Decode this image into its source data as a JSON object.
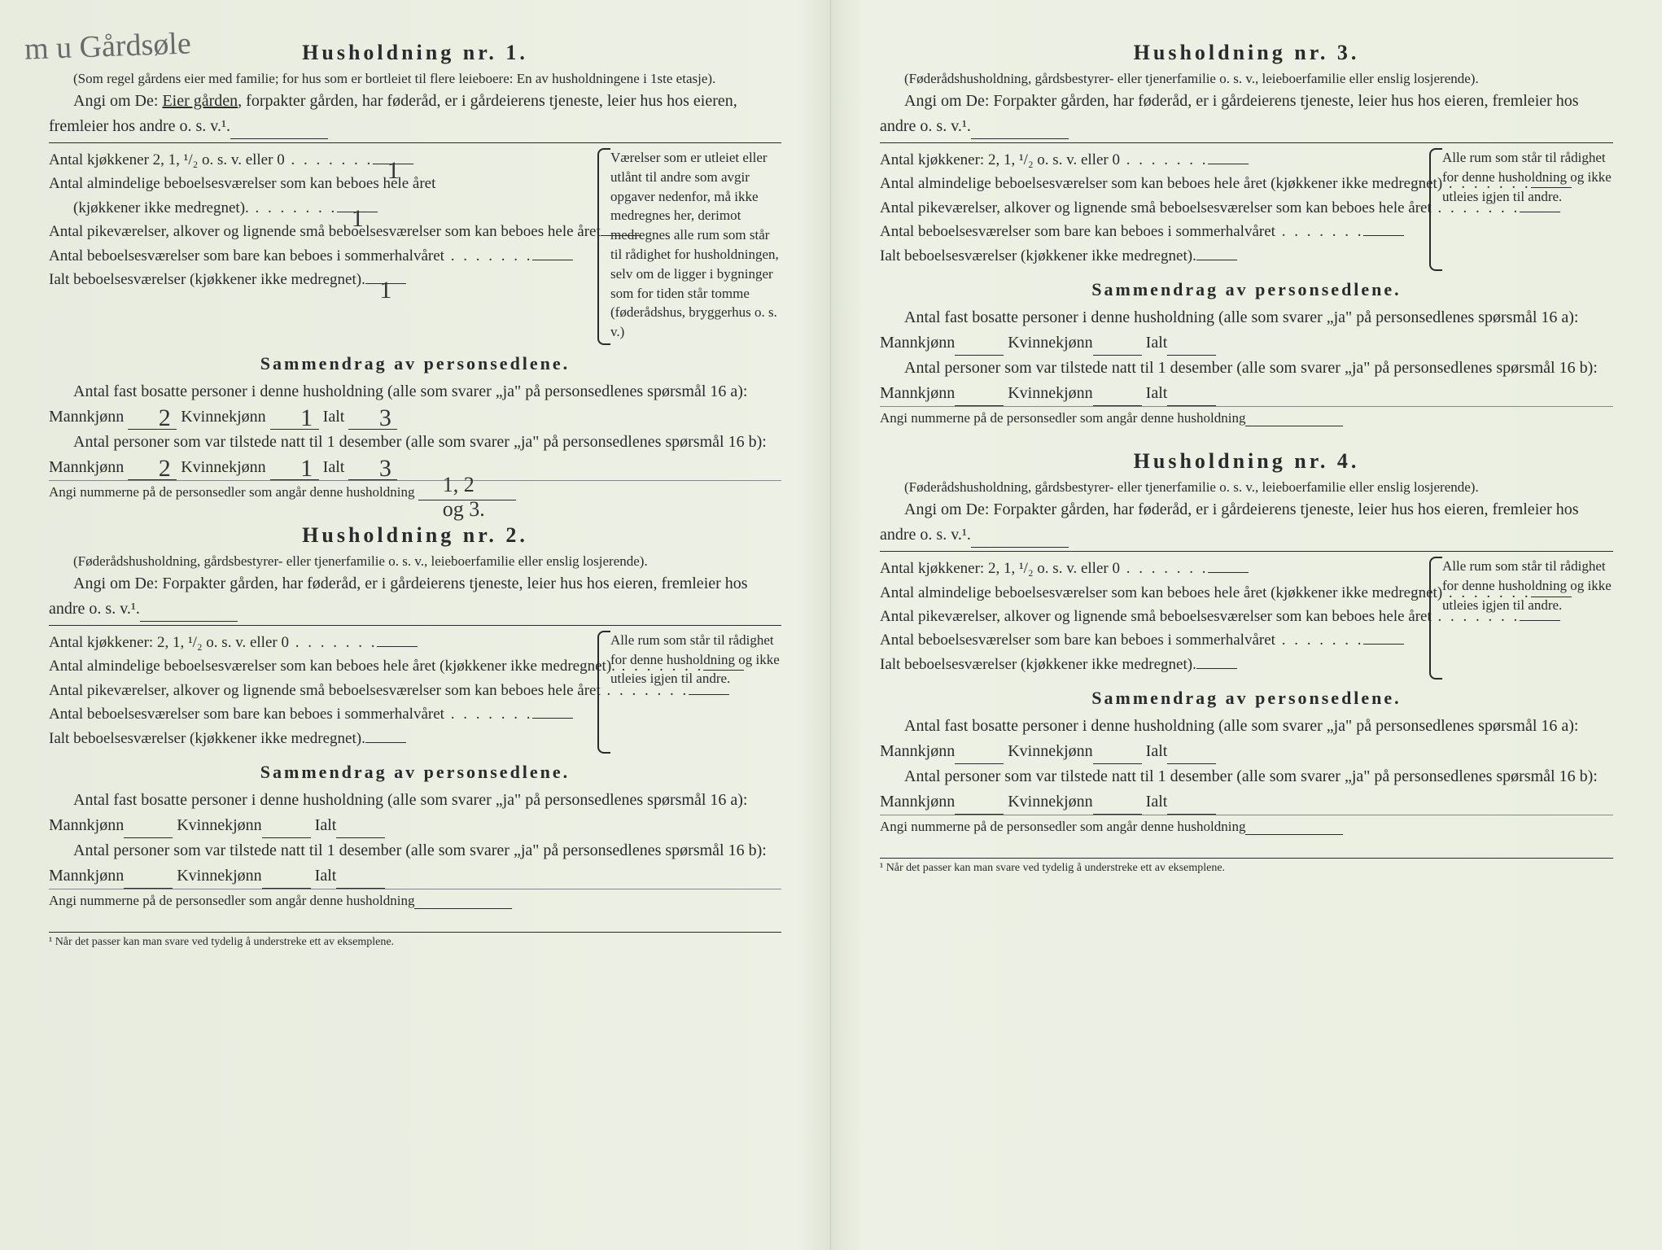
{
  "handwritten_top": "m u   Gårdsøle",
  "households": [
    {
      "title": "Husholdning nr. 1.",
      "note": "(Som regel gårdens eier med familie; for hus som er bortleiet til flere leieboere: En av husholdningene i 1ste etasje).",
      "angi_prefix": "Angi om De: ",
      "angi_underlined": "Eier gården",
      "angi_rest": ", forpakter gården, har føderåd, er i gårdeierens tjeneste, leier hus hos eieren, fremleier hos andre o. s. v.¹.",
      "rows": {
        "kjokken": "Antal kjøkkener 2, 1, ¹/₂ o. s. v. eller 0",
        "kjokken_val": "1",
        "almindelige": "Antal almindelige beboelsesværelser som kan beboes hele året",
        "almindelige_sub": "(kjøkkener ikke medregnet).",
        "almindelige_val": "1",
        "pike": "Antal pikeværelser, alkover og lignende små beboelsesværelser som kan beboes hele året",
        "pike_val": "",
        "sommer": "Antal beboelsesværelser som bare kan beboes i sommerhalvåret",
        "sommer_val": "",
        "ialt": "Ialt beboelsesværelser (kjøkkener ikke medregnet).",
        "ialt_val": "1"
      },
      "side_note": "Værelser som er utleiet eller utlånt til andre som avgir opgaver nedenfor, må ikke medregnes her, derimot medregnes alle rum som står til rådighet for husholdningen, selv om de ligger i bygninger som for tiden står tomme (føderådshus, bryggerhus o. s. v.)",
      "summary_title": "Sammendrag av personsedlene.",
      "s16a_prefix": "Antal fast bosatte personer i denne husholdning (alle som svarer „ja\" på personsedlenes spørsmål 16 a): Mannkjønn",
      "s16a_m": "2",
      "s16a_k_label": "Kvinnekjønn",
      "s16a_k": "1",
      "s16a_i_label": "Ialt",
      "s16a_i": "3",
      "s16b_prefix": "Antal personer som var tilstede natt til 1 desember (alle som svarer „ja\" på personsedlenes spørsmål 16 b): Mannkjønn",
      "s16b_m": "2",
      "s16b_k": "1",
      "s16b_i": "3",
      "angi_num_label": "Angi nummerne på de personsedler som angår denne husholdning",
      "angi_num_val": "1, 2 og 3."
    },
    {
      "title": "Husholdning nr. 2.",
      "note": "(Føderådshusholdning, gårdsbestyrer- eller tjenerfamilie o. s. v., leieboerfamilie eller enslig losjerende).",
      "angi_prefix": "Angi om De: Forpakter gården, har føderåd, er i gårdeierens tjeneste, leier hus hos eieren, fremleier hos andre o. s. v.¹.",
      "side_note": "Alle rum som står til rådighet for denne husholdning og ikke utleies igjen til andre.",
      "rows": {
        "kjokken": "Antal kjøkkener: 2, 1, ¹/₂ o. s. v. eller 0",
        "almindelige": "Antal almindelige beboelsesværelser som kan beboes hele året (kjøkkener ikke medregnet).",
        "pike": "Antal pikeværelser, alkover og lignende små beboelsesværelser som kan beboes hele året",
        "sommer": "Antal beboelsesværelser som bare kan beboes i sommerhalvåret",
        "ialt": "Ialt beboelsesværelser (kjøkkener ikke medregnet)."
      },
      "summary_title": "Sammendrag av personsedlene.",
      "s16a_prefix": "Antal fast bosatte personer i denne husholdning (alle som svarer „ja\" på personsedlenes spørsmål 16 a): Mannkjønn",
      "s16a_k_label": "Kvinnekjønn",
      "s16a_i_label": "Ialt",
      "s16b_prefix": "Antal personer som var tilstede natt til 1 desember (alle som svarer „ja\" på personsedlenes spørsmål 16 b): Mannkjønn",
      "angi_num_label": "Angi nummerne på de personsedler som angår denne husholdning"
    },
    {
      "title": "Husholdning nr. 3.",
      "note": "(Føderådshusholdning, gårdsbestyrer- eller tjenerfamilie o. s. v., leieboerfamilie eller enslig losjerende).",
      "angi_prefix": "Angi om De: Forpakter gården, har føderåd, er i gårdeierens tjeneste, leier hus hos eieren, fremleier hos andre o. s. v.¹.",
      "side_note": "Alle rum som står til rådighet for denne husholdning og ikke utleies igjen til andre.",
      "rows": {
        "kjokken": "Antal kjøkkener: 2, 1, ¹/₂ o. s. v. eller 0",
        "almindelige": "Antal almindelige beboelsesværelser som kan beboes hele året (kjøkkener ikke medregnet)",
        "pike": "Antal pikeværelser, alkover og lignende små beboelsesværelser som kan beboes hele året",
        "sommer": "Antal beboelsesværelser som bare kan beboes i sommerhalvåret",
        "ialt": "Ialt beboelsesværelser (kjøkkener ikke medregnet)."
      },
      "summary_title": "Sammendrag av personsedlene.",
      "s16a_prefix": "Antal fast bosatte personer i denne husholdning (alle som svarer „ja\" på personsedlenes spørsmål 16 a): Mannkjønn",
      "s16a_k_label": "Kvinnekjønn",
      "s16a_i_label": "Ialt",
      "s16b_prefix": "Antal personer som var tilstede natt til 1 desember (alle som svarer „ja\" på personsedlenes spørsmål 16 b): Mannkjønn",
      "angi_num_label": "Angi nummerne på de personsedler som angår denne husholdning"
    },
    {
      "title": "Husholdning nr. 4.",
      "note": "(Føderådshusholdning, gårdsbestyrer- eller tjenerfamilie o. s. v., leieboerfamilie eller enslig losjerende).",
      "angi_prefix": "Angi om De: Forpakter gården, har føderåd, er i gårdeierens tjeneste, leier hus hos eieren, fremleier hos andre o. s. v.¹.",
      "side_note": "Alle rum som står til rådighet for denne husholdning og ikke utleies igjen til andre.",
      "rows": {
        "kjokken": "Antal kjøkkener: 2, 1, ¹/₂ o. s. v. eller 0",
        "almindelige": "Antal almindelige beboelsesværelser som kan beboes hele året (kjøkkener ikke medregnet)",
        "pike": "Antal pikeværelser, alkover og lignende små beboelsesværelser som kan beboes hele året",
        "sommer": "Antal beboelsesværelser som bare kan beboes i sommerhalvåret",
        "ialt": "Ialt beboelsesværelser (kjøkkener ikke medregnet)."
      },
      "summary_title": "Sammendrag av personsedlene.",
      "s16a_prefix": "Antal fast bosatte personer i denne husholdning (alle som svarer „ja\" på personsedlenes spørsmål 16 a): Mannkjønn",
      "s16a_k_label": "Kvinnekjønn",
      "s16a_i_label": "Ialt",
      "s16b_prefix": "Antal personer som var tilstede natt til 1 desember (alle som svarer „ja\" på personsedlenes spørsmål 16 b): Mannkjønn",
      "angi_num_label": "Angi nummerne på de personsedler som angår denne husholdning"
    }
  ],
  "footnote": "¹ Når det passer kan man svare ved tydelig å understreke ett av eksemplene.",
  "style": {
    "bg": "#eaefe2",
    "text": "#2a2a2a",
    "hand": "#555",
    "title_size": 26,
    "body_size": 20,
    "small_size": 17
  }
}
